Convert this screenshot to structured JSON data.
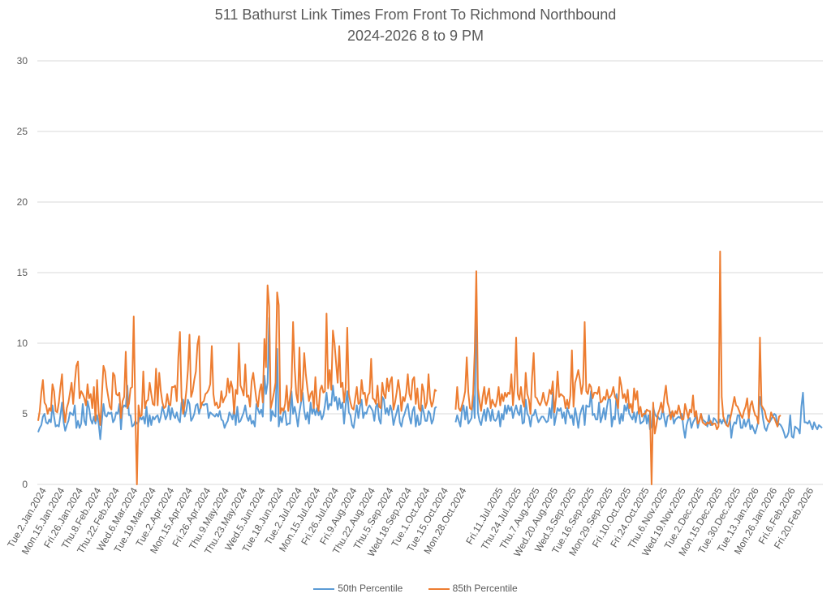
{
  "chart_data": {
    "type": "line",
    "title": "511 Bathurst Link Times From Front To Richmond Northbound",
    "subtitle": "2024-2026 8 to 9 PM",
    "xlabel": "",
    "ylabel": "",
    "ylim": [
      0,
      30
    ],
    "yticks": [
      0,
      5,
      10,
      15,
      20,
      25,
      30
    ],
    "grid": true,
    "legend_position": "bottom",
    "x_tick_labels": [
      "Tue.2.Jan.2024",
      "Mon.15.Jan.2024",
      "Fri.26.Jan.2024",
      "Thu.8.Feb.2024",
      "Thu.22.Feb.2024",
      "Wed.6.Mar.2024",
      "Tue.19.Mar.2024",
      "Tue.2.Apr.2024",
      "Mon.15.Apr.2024",
      "Fri.26.Apr.2024",
      "Thu.9.May.2024",
      "Thu.23.May.2024",
      "Wed.5.Jun.2024",
      "Tue.18.Jun.2024",
      "Tue.2.Jul.2024",
      "Mon.15.Jul.2024",
      "Fri.26.Jul.2024",
      "Fri.9.Aug.2024",
      "Thu.22.Aug.2024",
      "Thu.5.Sep.2024",
      "Wed.18.Sep.2024",
      "Tue.1.Oct.2024",
      "Tue.15.Oct.2024",
      "Mon.28.Oct.2024",
      "",
      "Fri.11.Jul.2025",
      "Thu.24.Jul.2025",
      "Thu.7.Aug.2025",
      "Wed.20.Aug.2025",
      "Wed.3.Sep.2025",
      "Tue.16.Sep.2025",
      "Mon.29.Sep.2025",
      "Fri.10.Oct.2025",
      "Fri.24.Oct.2025",
      "Thu.6.Nov.2025",
      "Wed.19.Nov.2025",
      "Tue.2.Dec.2025",
      "Mon.15.Dec.2025",
      "Tue.30.Dec.2025",
      "Tue.13.Jan.2026",
      "Mon.26.Jan.2026",
      "Fri.6.Feb.2026",
      "Fri.20.Feb.2026"
    ],
    "series": [
      {
        "name": "50th Percentile",
        "color": "#5B9BD5",
        "values": [
          3.7,
          4.0,
          4.2,
          4.8,
          5.0,
          4.4,
          4.3,
          4.6,
          4.4,
          5.6,
          4.8,
          4.1,
          4.2,
          4.1,
          4.9,
          5.8,
          4.4,
          3.8,
          4.2,
          4.5,
          5.1,
          5.0,
          4.9,
          5.6,
          4.0,
          4.5,
          4.0,
          4.3,
          5.7,
          4.5,
          4.2,
          5.9,
          5.4,
          4.6,
          4.3,
          4.8,
          4.3,
          4.9,
          4.3,
          3.2,
          4.5,
          5.7,
          4.9,
          4.8,
          5.1,
          5.0,
          5.1,
          4.4,
          4.6,
          5.1,
          5.0,
          5.7,
          3.9,
          5.4,
          5.6,
          5.5,
          7.0,
          4.9,
          4.9,
          4.1,
          4.2,
          4.5,
          4.3,
          4.4,
          4.8,
          4.6,
          4.8,
          4.3,
          5.5,
          4.1,
          4.9,
          4.2,
          4.8,
          4.6,
          4.8,
          4.9,
          4.4,
          4.8,
          5.5,
          5.1,
          4.6,
          4.9,
          5.6,
          4.6,
          5.4,
          4.9,
          4.7,
          5.1,
          4.6,
          4.4,
          5.8,
          6.0,
          4.8,
          5.2,
          6.0,
          5.7,
          4.5,
          4.7,
          5.0,
          5.6,
          5.7,
          5.0,
          5.5,
          5.7,
          5.6,
          5.7,
          5.7,
          4.7,
          5.1,
          5.0,
          4.9,
          4.8,
          5.0,
          4.8,
          5.2,
          4.6,
          4.5,
          4.0,
          4.3,
          4.5,
          5.1,
          4.9,
          4.6,
          5.4,
          4.2,
          5.5,
          4.4,
          4.5,
          4.8,
          5.1,
          5.6,
          4.8,
          4.5,
          4.9,
          4.3,
          4.5,
          4.1,
          5.7,
          5.3,
          5.0,
          5.3,
          4.8,
          7.7,
          6.4,
          7.2,
          11.8,
          4.5,
          5.2,
          4.9,
          4.8,
          9.6,
          4.1,
          4.8,
          4.4,
          5.1,
          5.2,
          4.2,
          4.3,
          4.3,
          6.6,
          5.0,
          5.5,
          4.9,
          4.1,
          5.1,
          5.8,
          6.5,
          5.2,
          4.6,
          5.1,
          4.3,
          5.8,
          5.0,
          5.4,
          4.9,
          5.4,
          4.9,
          5.2,
          4.6,
          4.9,
          5.6,
          6.5,
          5.3,
          5.7,
          5.6,
          7.0,
          5.9,
          6.2,
          5.3,
          6.1,
          5.4,
          5.8,
          4.3,
          5.6,
          6.6,
          5.1,
          4.9,
          4.2,
          4.0,
          4.8,
          5.6,
          4.7,
          5.5,
          6.0,
          4.7,
          5.1,
          5.0,
          5.4,
          5.6,
          5.4,
          5.2,
          4.5,
          5.5,
          5.7,
          4.6,
          4.3,
          6.2,
          6.0,
          5.0,
          5.4,
          4.9,
          5.6,
          5.2,
          4.2,
          4.7,
          5.1,
          5.6,
          4.4,
          4.1,
          4.7,
          5.0,
          5.4,
          5.7,
          4.8,
          4.3,
          5.2,
          5.5,
          4.1,
          4.9,
          4.2,
          4.3,
          5.6,
          5.1,
          4.5,
          4.5,
          5.2,
          5.0,
          4.3,
          4.6,
          5.4,
          5.5,
          null,
          null,
          null,
          null,
          null,
          null,
          null,
          null,
          null,
          null,
          null,
          4.4,
          4.9,
          4.5,
          4.1,
          5.2,
          5.6,
          4.6,
          5.5,
          4.3,
          4.5,
          4.7,
          6.4,
          4.7,
          13.9,
          5.1,
          4.5,
          4.2,
          4.8,
          5.3,
          4.5,
          5.4,
          5.1,
          4.5,
          5.3,
          4.6,
          4.5,
          4.7,
          5.2,
          4.1,
          5.0,
          4.6,
          5.6,
          5.0,
          5.6,
          5.2,
          5.5,
          4.7,
          5.2,
          5.6,
          5.1,
          4.9,
          5.6,
          4.3,
          4.4,
          6.0,
          5.0,
          4.8,
          4.1,
          4.9,
          4.9,
          5.3,
          4.8,
          4.4,
          4.6,
          4.8,
          4.8,
          4.6,
          4.4,
          4.5,
          5.4,
          4.7,
          6.5,
          4.2,
          4.8,
          5.4,
          5.2,
          5.4,
          4.7,
          5.1,
          4.3,
          5.4,
          5.1,
          4.7,
          4.9,
          4.2,
          5.4,
          4.8,
          4.0,
          4.9,
          5.3,
          5.6,
          4.2,
          5.6,
          5.5,
          5.5,
          6.6,
          4.9,
          5.0,
          4.6,
          4.6,
          5.8,
          4.4,
          4.8,
          5.4,
          4.6,
          5.5,
          6.1,
          6.0,
          4.1,
          4.8,
          4.6,
          6.4,
          5.1,
          4.3,
          5.0,
          4.5,
          5.6,
          5.2,
          5.7,
          5.0,
          4.8,
          4.6,
          5.1,
          4.4,
          5.1,
          5.2,
          4.3,
          4.4,
          4.5,
          5.2,
          4.3,
          4.9,
          3.9,
          4.1,
          5.5,
          5.0,
          4.8,
          4.8,
          4.6,
          4.7,
          5.4,
          4.7,
          4.1,
          4.8,
          4.9,
          5.1,
          5.0,
          4.3,
          4.6,
          4.7,
          4.8,
          4.7,
          5.0,
          4.0,
          3.3,
          4.2,
          4.6,
          4.7,
          4.0,
          4.4,
          4.6,
          4.9,
          4.0,
          4.5,
          5.0,
          4.6,
          4.5,
          4.4,
          4.1,
          4.9,
          4.2,
          4.2,
          4.7,
          4.6,
          4.4,
          4.3,
          4.6,
          4.3,
          4.6,
          4.4,
          4.2,
          4.9,
          4.9,
          3.3,
          4.1,
          4.4,
          4.3,
          4.9,
          4.9,
          4.0,
          4.0,
          4.6,
          4.1,
          4.4,
          4.7,
          3.9,
          4.2,
          3.9,
          3.6,
          4.0,
          4.5,
          6.2,
          5.5,
          4.6,
          4.0,
          3.8,
          4.2,
          4.4,
          4.6,
          4.8,
          5.0,
          4.9,
          4.1,
          4.3,
          4.2,
          4.0,
          3.7,
          3.3,
          3.4,
          3.7,
          4.9,
          3.4,
          3.3,
          4.1,
          4.0,
          3.9,
          3.6,
          5.5,
          6.5,
          4.4,
          4.4,
          4.3,
          4.5,
          4.2,
          3.9,
          4.4,
          4.1,
          3.9,
          4.2,
          4.1,
          4.0
        ]
      },
      {
        "name": "85th Percentile",
        "color": "#ED7D31",
        "values": [
          4.5,
          5.2,
          6.5,
          7.4,
          5.8,
          5.6,
          5.0,
          5.4,
          5.2,
          7.1,
          6.6,
          5.2,
          5.1,
          5.8,
          6.9,
          7.8,
          5.4,
          4.4,
          5.4,
          5.8,
          6.5,
          7.2,
          5.7,
          7.2,
          8.4,
          8.7,
          6.1,
          6.6,
          6.4,
          6.1,
          5.6,
          7.1,
          6.1,
          6.4,
          5.4,
          6.9,
          4.5,
          7.4,
          5.1,
          4.2,
          6.3,
          8.4,
          8.0,
          6.9,
          6.2,
          5.5,
          5.3,
          7.9,
          7.7,
          6.4,
          6.3,
          6.5,
          4.7,
          5.9,
          6.2,
          9.4,
          5.4,
          5.7,
          6.8,
          6.9,
          11.9,
          5.2,
          0,
          5.6,
          4.8,
          4.9,
          8.0,
          5.4,
          5.9,
          6.0,
          7.2,
          6.4,
          5.7,
          5.6,
          8.2,
          5.6,
          7.9,
          6.6,
          5.8,
          5.4,
          5.5,
          6.4,
          5.7,
          5.6,
          6.9,
          6.9,
          7.0,
          5.9,
          9.0,
          10.8,
          6.2,
          5.0,
          5.6,
          6.6,
          8.1,
          10.6,
          6.2,
          6.6,
          7.4,
          8.0,
          9.9,
          10.5,
          5.4,
          5.8,
          5.9,
          6.4,
          6.5,
          6.7,
          7.1,
          9.8,
          6.4,
          5.6,
          5.8,
          5.4,
          5.5,
          6.6,
          5.8,
          6.1,
          6.3,
          7.5,
          6.5,
          7.3,
          6.8,
          5.0,
          6.7,
          6.4,
          10.0,
          7.0,
          6.7,
          6.3,
          8.5,
          6.2,
          6.3,
          5.5,
          7.3,
          7.9,
          6.9,
          6.0,
          5.5,
          6.6,
          7.1,
          5.8,
          10.3,
          8.3,
          14.1,
          12.6,
          5.4,
          5.9,
          6.5,
          7.2,
          13.6,
          12.7,
          5.0,
          5.4,
          5.2,
          5.7,
          7.0,
          5.2,
          6.1,
          6.9,
          11.5,
          8.3,
          6.4,
          5.8,
          9.7,
          5.9,
          6.8,
          9.3,
          7.8,
          6.8,
          5.9,
          6.4,
          6.6,
          5.4,
          7.6,
          5.7,
          5.2,
          6.7,
          7.0,
          6.5,
          6.6,
          12.1,
          6.8,
          8.1,
          6.7,
          10.9,
          10.0,
          8.6,
          7.2,
          9.8,
          6.9,
          7.2,
          5.8,
          6.9,
          11.1,
          6.4,
          5.8,
          5.4,
          5.3,
          6.1,
          6.9,
          5.7,
          5.8,
          7.4,
          6.4,
          6.5,
          5.6,
          6.3,
          6.5,
          8.9,
          6.1,
          6.0,
          5.7,
          7.0,
          5.5,
          5.4,
          7.2,
          6.4,
          6.1,
          7.5,
          6.6,
          7.3,
          7.6,
          5.3,
          5.8,
          6.5,
          7.4,
          6.6,
          5.2,
          6.2,
          5.9,
          6.5,
          7.8,
          6.4,
          6.0,
          7.4,
          7.6,
          5.7,
          6.8,
          5.4,
          5.2,
          7.1,
          6.6,
          5.4,
          5.8,
          7.8,
          6.1,
          5.5,
          5.9,
          6.7,
          6.6,
          null,
          null,
          null,
          null,
          null,
          null,
          null,
          null,
          null,
          null,
          null,
          5.3,
          6.9,
          5.4,
          5.2,
          5.6,
          6.0,
          6.6,
          9.0,
          6.5,
          5.4,
          5.3,
          6.4,
          9.4,
          15.1,
          6.8,
          5.9,
          5.2,
          6.2,
          6.9,
          5.7,
          6.3,
          6.8,
          5.4,
          6.0,
          5.7,
          5.5,
          6.0,
          6.9,
          5.6,
          6.4,
          5.9,
          6.5,
          6.2,
          6.5,
          6.4,
          7.8,
          5.6,
          7.0,
          10.4,
          6.4,
          6.0,
          6.9,
          5.9,
          5.5,
          7.9,
          6.4,
          6.0,
          5.0,
          7.6,
          9.3,
          6.2,
          6.1,
          5.8,
          5.6,
          5.9,
          6.5,
          5.9,
          5.6,
          6.0,
          6.7,
          6.4,
          7.3,
          5.1,
          6.1,
          8.0,
          6.2,
          6.4,
          6.3,
          6.2,
          5.4,
          6.0,
          5.4,
          6.3,
          9.5,
          5.5,
          7.2,
          7.6,
          8.1,
          7.4,
          6.4,
          7.1,
          11.5,
          6.6,
          6.4,
          7.1,
          6.9,
          6.1,
          6.5,
          6.5,
          6.4,
          6.9,
          5.8,
          5.9,
          6.2,
          6.0,
          6.7,
          6.1,
          6.2,
          6.4,
          6.9,
          6.2,
          6.0,
          5.4,
          7.6,
          7.0,
          6.1,
          6.4,
          5.8,
          6.7,
          5.4,
          5.7,
          5.1,
          6.8,
          6.0,
          6.6,
          5.0,
          5.5,
          4.8,
          5.0,
          5.0,
          5.3,
          5.2,
          5.2,
          0,
          5.8,
          3.6,
          4.2,
          5.0,
          5.3,
          5.8,
          5.1,
          6.2,
          7.0,
          5.8,
          5.4,
          4.6,
          5.2,
          4.8,
          5.2,
          5.0,
          5.6,
          5.1,
          4.6,
          4.6,
          5.7,
          5.2,
          4.7,
          5.3,
          5.1,
          6.3,
          4.8,
          5.2,
          4.3,
          4.5,
          5.0,
          4.4,
          4.3,
          4.2,
          4.4,
          4.3,
          4.5,
          4.2,
          4.3,
          4.3,
          3.9,
          4.1,
          16.5,
          6.2,
          4.8,
          4.5,
          4.2,
          4.1,
          4.5,
          5.0,
          5.6,
          6.2,
          5.6,
          5.5,
          5.2,
          4.9,
          4.7,
          5.2,
          5.5,
          6.1,
          4.7,
          5.6,
          5.9,
          5.3,
          4.9,
          4.8,
          4.3,
          10.4,
          5.6,
          5.4,
          5.2,
          4.7,
          4.5,
          4.4,
          5.1,
          4.8,
          4.7,
          4.4,
          4.1,
          4.8,
          4.9
        ]
      }
    ]
  }
}
